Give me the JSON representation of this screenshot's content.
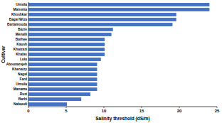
{
  "chart_data": {
    "type": "bar",
    "orientation": "horizontal",
    "x_label": "Salinity threshold (dS/m)",
    "y_label": "Cultivar",
    "categories": [
      "Umsila",
      "Manoma",
      "Khoshkar",
      "Bagal Wiza",
      "Bartamouda",
      "Bazre",
      "Menalli",
      "Barhee",
      "Kaush",
      "Khaizazi",
      "Khalas",
      "Lulu",
      "Abounarejeh",
      "Khenaizy",
      "Nagal",
      "Fard",
      "Umsila",
      "Manama",
      "Ruzi",
      "Barhi",
      "Nabaudi"
    ],
    "values": [
      24,
      24,
      19.6,
      19.6,
      19.1,
      11.2,
      11,
      10.1,
      10.1,
      10.1,
      10.1,
      9.6,
      9.1,
      9.1,
      9.1,
      9.1,
      9.1,
      9.1,
      8.2,
      7,
      5.1
    ],
    "color": "#4472c4",
    "xlim": [
      0,
      25
    ],
    "xticks": [
      0,
      5,
      10,
      15,
      20,
      25
    ],
    "grid": false
  }
}
